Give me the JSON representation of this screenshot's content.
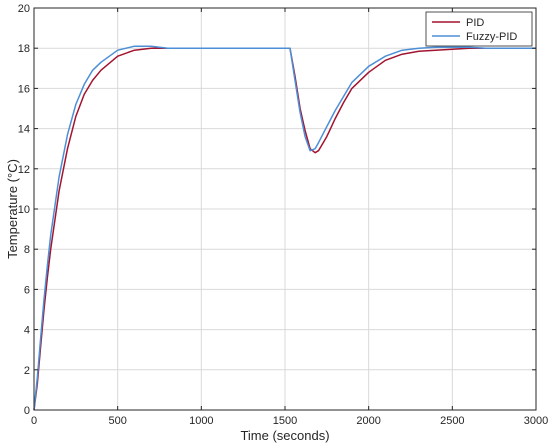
{
  "chart_data": {
    "type": "line",
    "xlabel": "Time (seconds)",
    "ylabel": "Temperature (°C)",
    "xlim": [
      0,
      3000
    ],
    "ylim": [
      0,
      20
    ],
    "xticks": [
      0,
      500,
      1000,
      1500,
      2000,
      2500,
      3000
    ],
    "yticks": [
      0,
      2,
      4,
      6,
      8,
      10,
      12,
      14,
      16,
      18,
      20
    ],
    "grid": true,
    "legend_position": "top-right",
    "series": [
      {
        "name": "PID",
        "color": "#a2142f",
        "x": [
          0,
          20,
          40,
          60,
          80,
          100,
          150,
          200,
          250,
          300,
          350,
          400,
          500,
          600,
          700,
          800,
          900,
          1000,
          1200,
          1400,
          1530,
          1560,
          1590,
          1620,
          1650,
          1680,
          1700,
          1750,
          1800,
          1850,
          1900,
          2000,
          2100,
          2200,
          2300,
          2400,
          2500,
          2600,
          2700,
          2800,
          3000
        ],
        "y": [
          0,
          1.3,
          3.2,
          5.0,
          6.6,
          8.0,
          10.9,
          13.0,
          14.6,
          15.7,
          16.4,
          16.9,
          17.6,
          17.9,
          18.0,
          18.0,
          18.0,
          18.0,
          18.0,
          18.0,
          18.0,
          16.6,
          15.0,
          13.9,
          13.0,
          12.8,
          12.9,
          13.6,
          14.5,
          15.3,
          16.0,
          16.8,
          17.4,
          17.7,
          17.85,
          17.9,
          17.95,
          18.0,
          18.0,
          18.0,
          18.0
        ]
      },
      {
        "name": "Fuzzy-PID",
        "color": "#4d8fd6",
        "x": [
          0,
          20,
          40,
          60,
          80,
          100,
          150,
          200,
          250,
          300,
          350,
          400,
          500,
          600,
          700,
          800,
          900,
          1000,
          1200,
          1400,
          1530,
          1560,
          1590,
          1620,
          1650,
          1680,
          1700,
          1750,
          1800,
          1850,
          1900,
          2000,
          2100,
          2200,
          2300,
          2400,
          2500,
          2600,
          2700,
          2800,
          3000
        ],
        "y": [
          0,
          1.6,
          3.6,
          5.5,
          7.2,
          8.7,
          11.6,
          13.7,
          15.2,
          16.2,
          16.9,
          17.3,
          17.9,
          18.1,
          18.1,
          18.0,
          18.0,
          18.0,
          18.0,
          18.0,
          18.0,
          16.4,
          14.8,
          13.6,
          12.9,
          13.0,
          13.3,
          14.1,
          14.9,
          15.6,
          16.3,
          17.1,
          17.6,
          17.9,
          18.0,
          18.05,
          18.05,
          18.05,
          18.0,
          18.0,
          18.0
        ]
      }
    ]
  }
}
